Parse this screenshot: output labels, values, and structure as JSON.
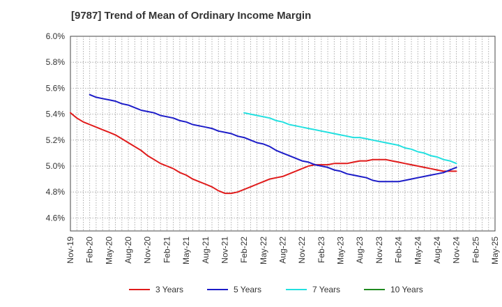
{
  "chart_data": {
    "type": "line",
    "title": "[9787]  Trend of Mean of Ordinary Income Margin",
    "xlabel": "",
    "ylabel": "",
    "x": [
      "Nov-19",
      "Feb-20",
      "May-20",
      "Aug-20",
      "Nov-20",
      "Feb-21",
      "May-21",
      "Aug-21",
      "Nov-21",
      "Feb-22",
      "May-22",
      "Aug-22",
      "Nov-22",
      "Feb-23",
      "May-23",
      "Aug-23",
      "Nov-23",
      "Feb-24",
      "May-24",
      "Aug-24",
      "Nov-24",
      "Feb-25",
      "May-25"
    ],
    "ylim": [
      4.5,
      6.0
    ],
    "yticks": [
      "4.6%",
      "4.8%",
      "5.0%",
      "5.2%",
      "5.4%",
      "5.6%",
      "5.8%",
      "6.0%"
    ],
    "yticks_values": [
      4.6,
      4.8,
      5.0,
      5.2,
      5.4,
      5.6,
      5.8,
      6.0
    ],
    "grid": true,
    "legend_position": "bottom",
    "series": [
      {
        "name": "3 Years",
        "color": "#e01b1b",
        "points": [
          [
            "Nov-19",
            5.41
          ],
          [
            "Dec-19",
            5.37
          ],
          [
            "Jan-20",
            5.34
          ],
          [
            "Feb-20",
            5.32
          ],
          [
            "Mar-20",
            5.3
          ],
          [
            "Apr-20",
            5.28
          ],
          [
            "May-20",
            5.26
          ],
          [
            "Jun-20",
            5.24
          ],
          [
            "Jul-20",
            5.21
          ],
          [
            "Aug-20",
            5.18
          ],
          [
            "Sep-20",
            5.15
          ],
          [
            "Oct-20",
            5.12
          ],
          [
            "Nov-20",
            5.08
          ],
          [
            "Dec-20",
            5.05
          ],
          [
            "Jan-21",
            5.02
          ],
          [
            "Feb-21",
            5.0
          ],
          [
            "Mar-21",
            4.98
          ],
          [
            "Apr-21",
            4.95
          ],
          [
            "May-21",
            4.93
          ],
          [
            "Jun-21",
            4.9
          ],
          [
            "Jul-21",
            4.88
          ],
          [
            "Aug-21",
            4.86
          ],
          [
            "Sep-21",
            4.84
          ],
          [
            "Oct-21",
            4.81
          ],
          [
            "Nov-21",
            4.79
          ],
          [
            "Dec-21",
            4.79
          ],
          [
            "Jan-22",
            4.8
          ],
          [
            "Feb-22",
            4.82
          ],
          [
            "Mar-22",
            4.84
          ],
          [
            "Apr-22",
            4.86
          ],
          [
            "May-22",
            4.88
          ],
          [
            "Jun-22",
            4.9
          ],
          [
            "Jul-22",
            4.91
          ],
          [
            "Aug-22",
            4.92
          ],
          [
            "Sep-22",
            4.94
          ],
          [
            "Oct-22",
            4.96
          ],
          [
            "Nov-22",
            4.98
          ],
          [
            "Dec-22",
            5.0
          ],
          [
            "Jan-23",
            5.01
          ],
          [
            "Feb-23",
            5.01
          ],
          [
            "Mar-23",
            5.01
          ],
          [
            "Apr-23",
            5.02
          ],
          [
            "May-23",
            5.02
          ],
          [
            "Jun-23",
            5.02
          ],
          [
            "Jul-23",
            5.03
          ],
          [
            "Aug-23",
            5.04
          ],
          [
            "Sep-23",
            5.04
          ],
          [
            "Oct-23",
            5.05
          ],
          [
            "Nov-23",
            5.05
          ],
          [
            "Dec-23",
            5.05
          ],
          [
            "Jan-24",
            5.04
          ],
          [
            "Feb-24",
            5.03
          ],
          [
            "Mar-24",
            5.02
          ],
          [
            "Apr-24",
            5.01
          ],
          [
            "May-24",
            5.0
          ],
          [
            "Jun-24",
            4.99
          ],
          [
            "Jul-24",
            4.98
          ],
          [
            "Aug-24",
            4.97
          ],
          [
            "Sep-24",
            4.96
          ],
          [
            "Oct-24",
            4.96
          ],
          [
            "Nov-24",
            4.96
          ]
        ]
      },
      {
        "name": "5 Years",
        "color": "#1c1cc8",
        "points": [
          [
            "Feb-20",
            5.55
          ],
          [
            "Mar-20",
            5.53
          ],
          [
            "Apr-20",
            5.52
          ],
          [
            "May-20",
            5.51
          ],
          [
            "Jun-20",
            5.5
          ],
          [
            "Jul-20",
            5.48
          ],
          [
            "Aug-20",
            5.47
          ],
          [
            "Sep-20",
            5.45
          ],
          [
            "Oct-20",
            5.43
          ],
          [
            "Nov-20",
            5.42
          ],
          [
            "Dec-20",
            5.41
          ],
          [
            "Jan-21",
            5.39
          ],
          [
            "Feb-21",
            5.38
          ],
          [
            "Mar-21",
            5.37
          ],
          [
            "Apr-21",
            5.35
          ],
          [
            "May-21",
            5.34
          ],
          [
            "Jun-21",
            5.32
          ],
          [
            "Jul-21",
            5.31
          ],
          [
            "Aug-21",
            5.3
          ],
          [
            "Sep-21",
            5.29
          ],
          [
            "Oct-21",
            5.27
          ],
          [
            "Nov-21",
            5.26
          ],
          [
            "Dec-21",
            5.25
          ],
          [
            "Jan-22",
            5.23
          ],
          [
            "Feb-22",
            5.22
          ],
          [
            "Mar-22",
            5.2
          ],
          [
            "Apr-22",
            5.18
          ],
          [
            "May-22",
            5.17
          ],
          [
            "Jun-22",
            5.15
          ],
          [
            "Jul-22",
            5.12
          ],
          [
            "Aug-22",
            5.1
          ],
          [
            "Sep-22",
            5.08
          ],
          [
            "Oct-22",
            5.06
          ],
          [
            "Nov-22",
            5.04
          ],
          [
            "Dec-22",
            5.03
          ],
          [
            "Jan-23",
            5.01
          ],
          [
            "Feb-23",
            5.0
          ],
          [
            "Mar-23",
            4.99
          ],
          [
            "Apr-23",
            4.97
          ],
          [
            "May-23",
            4.96
          ],
          [
            "Jun-23",
            4.94
          ],
          [
            "Jul-23",
            4.93
          ],
          [
            "Aug-23",
            4.92
          ],
          [
            "Sep-23",
            4.91
          ],
          [
            "Oct-23",
            4.89
          ],
          [
            "Nov-23",
            4.88
          ],
          [
            "Dec-23",
            4.88
          ],
          [
            "Jan-24",
            4.88
          ],
          [
            "Feb-24",
            4.88
          ],
          [
            "Mar-24",
            4.89
          ],
          [
            "Apr-24",
            4.9
          ],
          [
            "May-24",
            4.91
          ],
          [
            "Jun-24",
            4.92
          ],
          [
            "Jul-24",
            4.93
          ],
          [
            "Aug-24",
            4.94
          ],
          [
            "Sep-24",
            4.95
          ],
          [
            "Oct-24",
            4.97
          ],
          [
            "Nov-24",
            4.99
          ]
        ]
      },
      {
        "name": "7 Years",
        "color": "#22e0e0",
        "points": [
          [
            "Feb-22",
            5.41
          ],
          [
            "Mar-22",
            5.4
          ],
          [
            "Apr-22",
            5.39
          ],
          [
            "May-22",
            5.38
          ],
          [
            "Jun-22",
            5.37
          ],
          [
            "Jul-22",
            5.35
          ],
          [
            "Aug-22",
            5.34
          ],
          [
            "Sep-22",
            5.32
          ],
          [
            "Oct-22",
            5.31
          ],
          [
            "Nov-22",
            5.3
          ],
          [
            "Dec-22",
            5.29
          ],
          [
            "Jan-23",
            5.28
          ],
          [
            "Feb-23",
            5.27
          ],
          [
            "Mar-23",
            5.26
          ],
          [
            "Apr-23",
            5.25
          ],
          [
            "May-23",
            5.24
          ],
          [
            "Jun-23",
            5.23
          ],
          [
            "Jul-23",
            5.22
          ],
          [
            "Aug-23",
            5.22
          ],
          [
            "Sep-23",
            5.21
          ],
          [
            "Oct-23",
            5.2
          ],
          [
            "Nov-23",
            5.19
          ],
          [
            "Dec-23",
            5.18
          ],
          [
            "Jan-24",
            5.17
          ],
          [
            "Feb-24",
            5.16
          ],
          [
            "Mar-24",
            5.14
          ],
          [
            "Apr-24",
            5.13
          ],
          [
            "May-24",
            5.11
          ],
          [
            "Jun-24",
            5.1
          ],
          [
            "Jul-24",
            5.08
          ],
          [
            "Aug-24",
            5.07
          ],
          [
            "Sep-24",
            5.05
          ],
          [
            "Oct-24",
            5.04
          ],
          [
            "Nov-24",
            5.02
          ]
        ]
      },
      {
        "name": "10 Years",
        "color": "#1f8a1f",
        "points": []
      }
    ]
  }
}
